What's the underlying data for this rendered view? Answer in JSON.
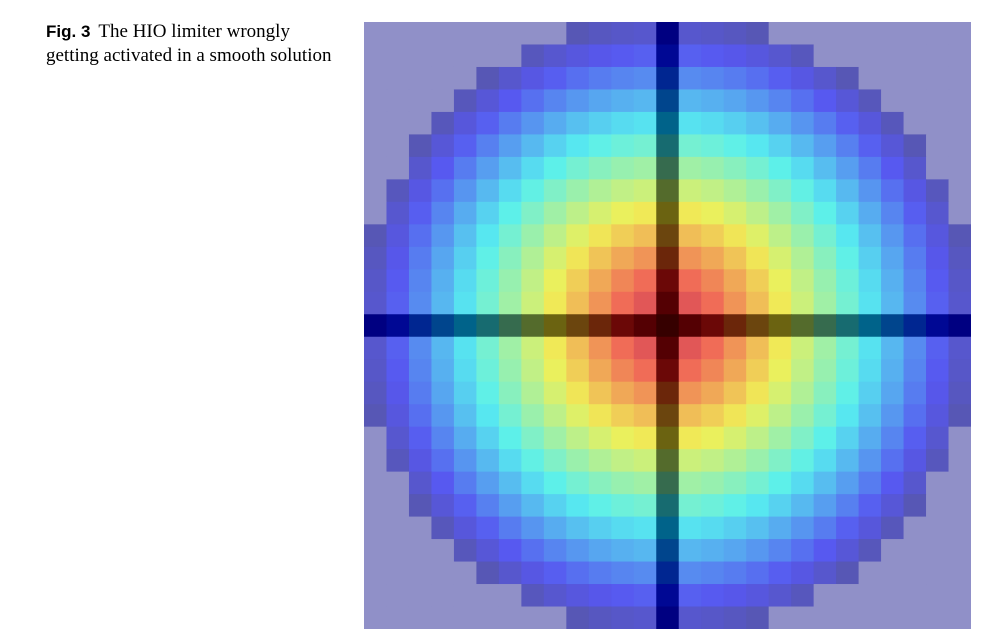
{
  "caption": {
    "label": "Fig. 3",
    "text": "The HIO limiter wrongly getting activated in a smooth solution"
  },
  "figure": {
    "kind": "heatmap",
    "grid_size": 27,
    "colormap": "jet",
    "overlay_alpha": 0.4,
    "background_color": "#9090c8",
    "limited_row": 13,
    "limited_column": 13,
    "limited_color": "#000030"
  }
}
